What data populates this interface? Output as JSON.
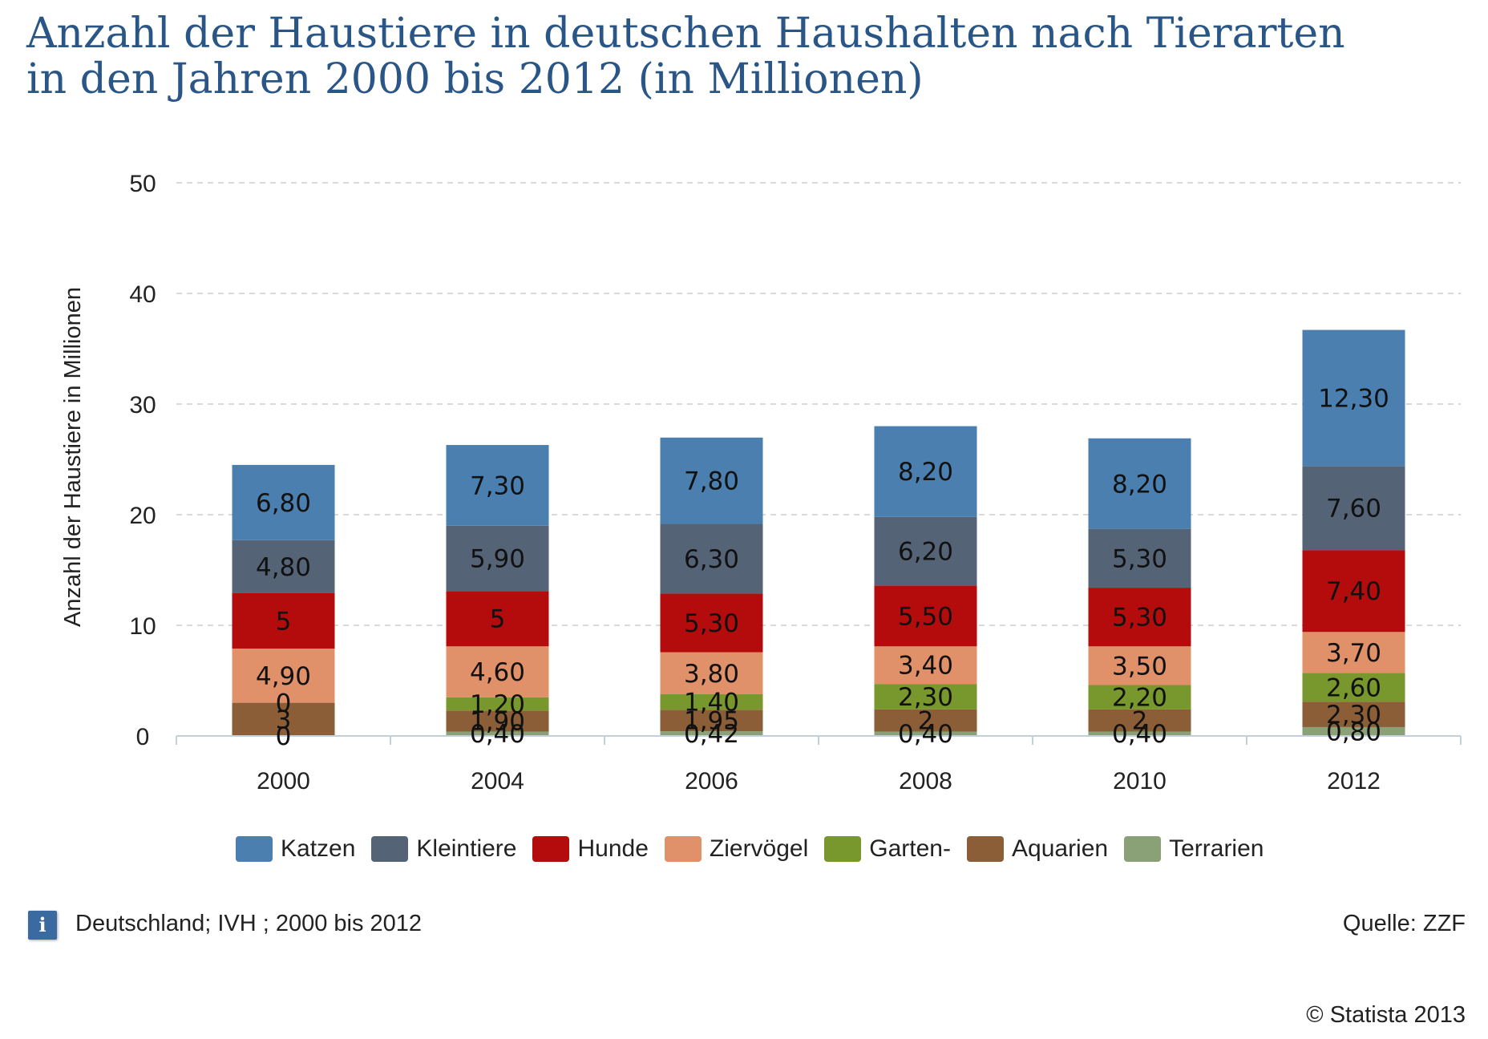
{
  "title": {
    "line1": "Anzahl der Haustiere in deutschen Haushalten nach Tierarten",
    "line2": "in den Jahren 2000 bis 2012 (in Millionen)"
  },
  "chart_data": {
    "type": "bar",
    "stacked": true,
    "categories": [
      "2000",
      "2004",
      "2006",
      "2008",
      "2010",
      "2012"
    ],
    "ylabel": "Anzahl der Haustiere in Millionen",
    "xlabel": "",
    "ylim": [
      0,
      50
    ],
    "yticks": [
      0,
      10,
      20,
      30,
      40,
      50
    ],
    "grid": true,
    "legend_position": "bottom",
    "series": [
      {
        "name": "Terrarien",
        "color": "#8aa178",
        "values": [
          0,
          0.4,
          0.42,
          0.4,
          0.4,
          0.8
        ],
        "labels": [
          "0",
          "0,40",
          "0,42",
          "0,40",
          "0,40",
          "0,80"
        ]
      },
      {
        "name": "Aquarien",
        "color": "#8c5e37",
        "values": [
          3,
          1.9,
          1.95,
          2,
          2,
          2.3
        ],
        "labels": [
          "3",
          "1,90",
          "1,95",
          "2",
          "2",
          "2,30"
        ]
      },
      {
        "name": "Garten-",
        "color": "#78972c",
        "values": [
          0,
          1.2,
          1.4,
          2.3,
          2.2,
          2.6
        ],
        "labels": [
          "0",
          "1,20",
          "1,40",
          "2,30",
          "2,20",
          "2,60"
        ]
      },
      {
        "name": "Ziervögel",
        "color": "#e0916a",
        "values": [
          4.9,
          4.6,
          3.8,
          3.4,
          3.5,
          3.7
        ],
        "labels": [
          "4,90",
          "4,60",
          "3,80",
          "3,40",
          "3,50",
          "3,70"
        ]
      },
      {
        "name": "Hunde",
        "color": "#b40c0c",
        "values": [
          5,
          5,
          5.3,
          5.5,
          5.3,
          7.4
        ],
        "labels": [
          "5",
          "5",
          "5,30",
          "5,50",
          "5,30",
          "7,40"
        ]
      },
      {
        "name": "Kleintiere",
        "color": "#546476",
        "values": [
          4.8,
          5.9,
          6.3,
          6.2,
          5.3,
          7.6
        ],
        "labels": [
          "4,80",
          "5,90",
          "6,30",
          "6,20",
          "5,30",
          "7,60"
        ]
      },
      {
        "name": "Katzen",
        "color": "#4a7fb0",
        "values": [
          6.8,
          7.3,
          7.8,
          8.2,
          8.2,
          12.3
        ],
        "labels": [
          "6,80",
          "7,30",
          "7,80",
          "8,20",
          "8,20",
          "12,30"
        ]
      }
    ]
  },
  "legend_order": [
    "Katzen",
    "Kleintiere",
    "Hunde",
    "Ziervögel",
    "Garten-",
    "Aquarien",
    "Terrarien"
  ],
  "footer": {
    "info_icon_glyph": "i",
    "info_text": "Deutschland; IVH ; 2000 bis 2012",
    "source": "Quelle: ZZF",
    "copyright": "© Statista 2013"
  }
}
